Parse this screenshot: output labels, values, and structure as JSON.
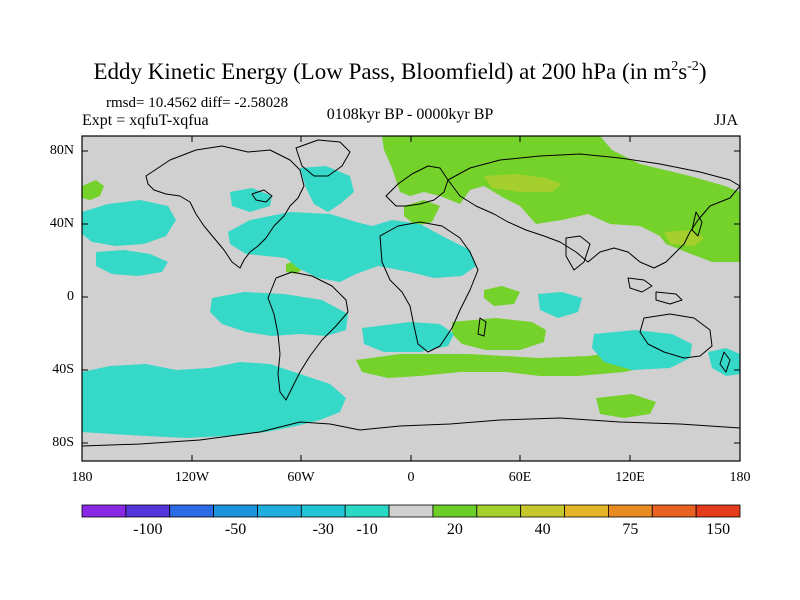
{
  "title": {
    "main": "Eddy Kinetic Energy (Low Pass, Bloomfield) at 200 hPa (in m",
    "sup1": "2",
    "mid": "s",
    "sup2": "-2",
    "end": ")"
  },
  "stats": {
    "rmsd_label": "rmsd=",
    "rmsd": "10.4562",
    "diff_label": "diff=",
    "diff": "-2.58028"
  },
  "expt": "Expt = xqfuT-xqfua",
  "period": "0108kyr BP - 0000kyr BP",
  "season": "JJA",
  "map": {
    "lat_labels": [
      "80N",
      "40N",
      "0",
      "40S",
      "80S"
    ],
    "lon_labels": [
      "180",
      "120W",
      "60W",
      "0",
      "60E",
      "120E",
      "180"
    ],
    "land_color": "#000000",
    "neutral_color": "#d0d0d0",
    "fields": {
      "positive_10_20": "#74d22b",
      "positive_20_40": "#a5cf2c",
      "negative_10_30": "#36d8c8"
    }
  },
  "colorbar": {
    "labels": [
      "-100",
      "-50",
      "-30",
      "-10",
      "20",
      "40",
      "75",
      "150"
    ],
    "colors": [
      "#8a28e6",
      "#5436dc",
      "#2c6be6",
      "#1d93dd",
      "#20aede",
      "#22c5d6",
      "#2ad9c5",
      "#d0d0d0",
      "#6ccf27",
      "#a5cf2c",
      "#c6c72a",
      "#e3b425",
      "#e88c22",
      "#e96221",
      "#e43b1c"
    ]
  }
}
